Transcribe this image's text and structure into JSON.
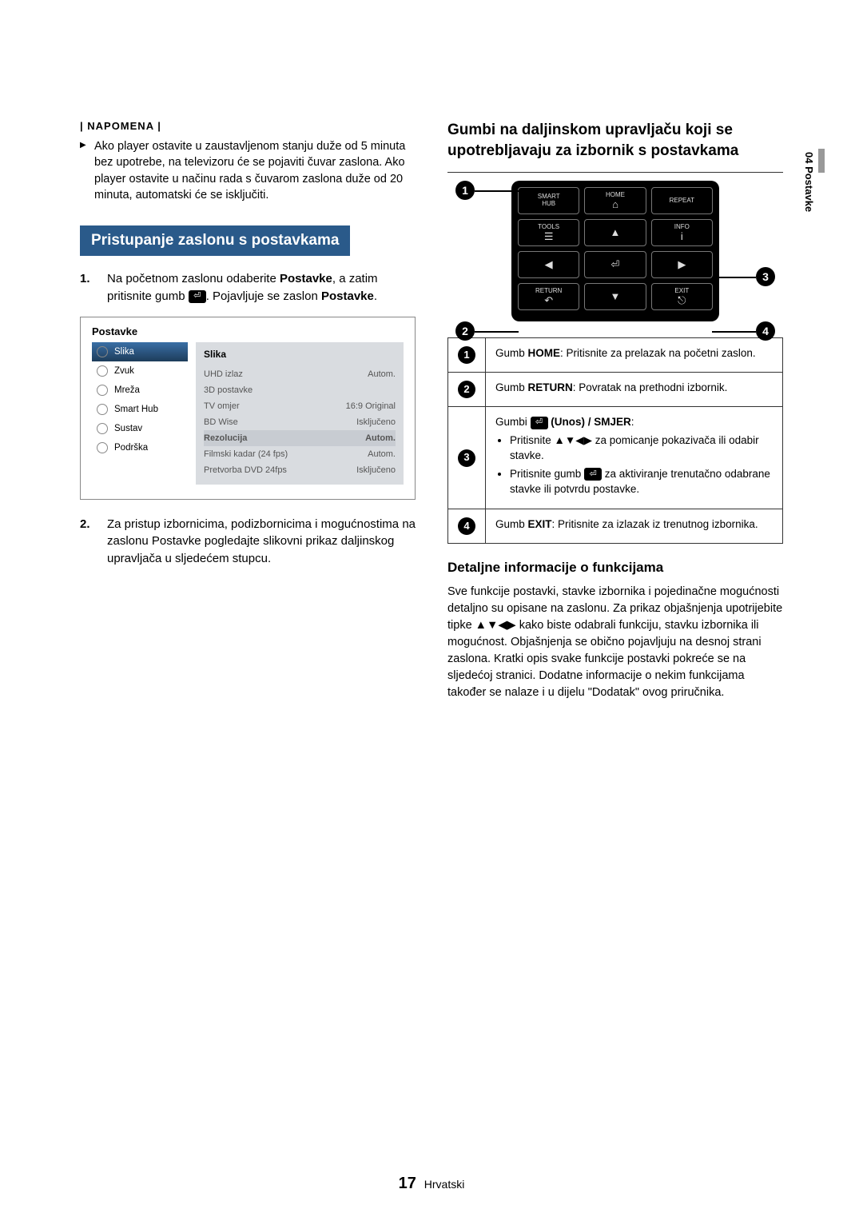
{
  "page": {
    "number": "17",
    "lang_label": "Hrvatski",
    "side_tab": "04  Postavke"
  },
  "left": {
    "note_label": "| NAPOMENA |",
    "note_body": "Ako player ostavite u zaustavljenom stanju duže od 5 minuta bez upotrebe, na televizoru će se pojaviti čuvar zaslona. Ako player ostavite u načinu rada s čuvarom zaslona duže od 20 minuta, automatski će se isključiti.",
    "section_title": "Pristupanje zaslonu s postavkama",
    "step1_prefix": "Na početnom zaslonu odaberite ",
    "step1_bold1": "Postavke",
    "step1_mid": ", a zatim pritisnite gumb ",
    "step1_suffix": ". Pojavljuje se zaslon ",
    "step1_bold2": "Postavke",
    "step1_end": ".",
    "step2": "Za pristup izbornicima, podizbornicima i mogućnostima na zaslonu Postavke pogledajte slikovni prikaz daljinskog upravljača u sljedećem stupcu.",
    "settings": {
      "title": "Postavke",
      "nav": [
        "Slika",
        "Zvuk",
        "Mreža",
        "Smart Hub",
        "Sustav",
        "Podrška"
      ],
      "panel_title": "Slika",
      "rows": [
        {
          "k": "UHD izlaz",
          "v": "Autom."
        },
        {
          "k": "3D postavke",
          "v": ""
        },
        {
          "k": "TV omjer",
          "v": "16:9 Original"
        },
        {
          "k": "BD Wise",
          "v": "Isključeno"
        },
        {
          "k": "Rezolucija",
          "v": "Autom.",
          "hl": true
        },
        {
          "k": "Filmski kadar (24 fps)",
          "v": "Autom."
        },
        {
          "k": "Pretvorba DVD 24fps",
          "v": "Isključeno"
        }
      ]
    }
  },
  "right": {
    "title": "Gumbi na daljinskom upravljaču koji se upotrebljavaju za izbornik s postavkama",
    "remote_labels": {
      "smart": "SMART",
      "hub": "HUB",
      "home": "HOME",
      "repeat": "REPEAT",
      "tools": "TOOLS",
      "info": "INFO",
      "return": "RETURN",
      "exit": "EXIT"
    },
    "legend": [
      {
        "n": "1",
        "html": "Gumb <b>HOME</b>: Pritisnite za prelazak na početni zaslon."
      },
      {
        "n": "2",
        "html": "Gumb <b>RETURN</b>: Povratak na prethodni izbornik."
      },
      {
        "n": "3",
        "html": "Gumbi <span class='enter-icon'>⏎</span> <b>(Unos) / SMJER</b>:<ul><li>Pritisnite <span class='arrows'>▲▼◀▶</span> za pomicanje pokazivača ili odabir stavke.</li><li>Pritisnite gumb <span class='enter-icon'>⏎</span> za aktiviranje trenutačno odabrane stavke ili potvrdu postavke.</li></ul>"
      },
      {
        "n": "4",
        "html": "Gumb <b>EXIT</b>: Pritisnite za izlazak iz trenutnog izbornika."
      }
    ],
    "sub_title": "Detaljne informacije o funkcijama",
    "body": "Sve funkcije postavki, stavke izbornika i pojedinačne mogućnosti detaljno su opisane na zaslonu. Za prikaz objašnjenja upotrijebite tipke ▲▼◀▶ kako biste odabrali funkciju, stavku izbornika ili mogućnost. Objašnjenja se obično pojavljuju na desnoj strani zaslona. Kratki opis svake funkcije postavki pokreće se na sljedećoj stranici. Dodatne informacije o nekim funkcijama također se nalaze i u dijelu \"Dodatak\" ovog priručnika."
  }
}
